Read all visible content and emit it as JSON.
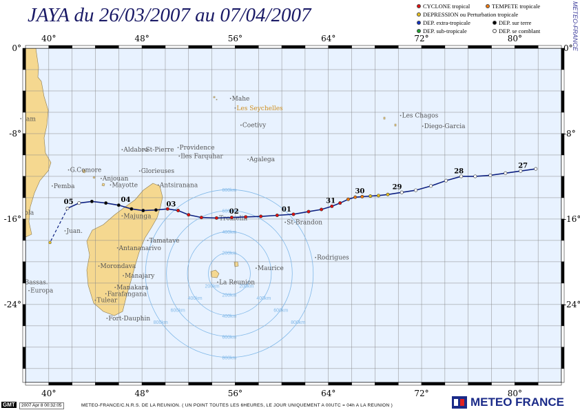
{
  "title": "JAYA du 26/03/2007 au 07/04/2007",
  "side_credit": "METEO-FRANCE",
  "legend": [
    {
      "label": "CYCLONE tropical",
      "color": "#e01010"
    },
    {
      "label": "TEMPETE tropicale",
      "color": "#f07a10"
    },
    {
      "label": "DEPRESSION ou Perturbation tropicale",
      "color": "#e8c020"
    },
    {
      "label": "DEP. extra-tropicale",
      "color": "#1030c0"
    },
    {
      "label": "DEP. sur terre",
      "color": "#000000"
    },
    {
      "label": "DEP. sub-tropicale",
      "color": "#20a030"
    },
    {
      "label": "DEP. se comblant",
      "color": "#ffffff"
    }
  ],
  "map": {
    "lon_ticks": [
      "40°",
      "48°",
      "56°",
      "64°",
      "72°",
      "80°"
    ],
    "lat_ticks": [
      "0°",
      "-8°",
      "-16°",
      "-24°"
    ],
    "colors": {
      "ocean": "#e8f2ff",
      "land": "#f5d890",
      "grid": "#888888",
      "track": "#0d2080",
      "rings": "#80b8e8"
    },
    "places": [
      {
        "name": "Mahe",
        "lon": 55.6,
        "lat": -4.7
      },
      {
        "name": "Les Seychelles",
        "lon": 56.0,
        "lat": -5.6,
        "color": "#d09020"
      },
      {
        "name": "Coetivy",
        "lon": 56.5,
        "lat": -7.2
      },
      {
        "name": "Aldabra",
        "lon": 46.3,
        "lat": -9.5
      },
      {
        "name": "St-Pierre",
        "lon": 48.2,
        "lat": -9.5
      },
      {
        "name": "Providence",
        "lon": 51.1,
        "lat": -9.3
      },
      {
        "name": "Iles Farquhar",
        "lon": 51.2,
        "lat": -10.1
      },
      {
        "name": "Agalega",
        "lon": 57.1,
        "lat": -10.4
      },
      {
        "name": "G.Comore",
        "lon": 41.7,
        "lat": -11.4
      },
      {
        "name": "Glorieuses",
        "lon": 47.8,
        "lat": -11.5
      },
      {
        "name": "Anjouan",
        "lon": 44.5,
        "lat": -12.2
      },
      {
        "name": "Mayotte",
        "lon": 45.3,
        "lat": -12.8
      },
      {
        "name": "Antsiranana",
        "lon": 49.4,
        "lat": -12.8
      },
      {
        "name": "Pemba",
        "lon": 40.3,
        "lat": -12.9
      },
      {
        "name": "Majunga",
        "lon": 46.3,
        "lat": -15.7
      },
      {
        "name": "Tromelin",
        "lon": 54.5,
        "lat": -15.9
      },
      {
        "name": "St-Brandon",
        "lon": 60.3,
        "lat": -16.3
      },
      {
        "name": "Juan.",
        "lon": 41.4,
        "lat": -17.1
      },
      {
        "name": "Tamatave",
        "lon": 48.5,
        "lat": -18.0
      },
      {
        "name": "Antananarivo",
        "lon": 45.9,
        "lat": -18.7
      },
      {
        "name": "Rodrigues",
        "lon": 62.9,
        "lat": -19.6
      },
      {
        "name": "Morondava",
        "lon": 44.3,
        "lat": -20.4
      },
      {
        "name": "Maurice",
        "lon": 57.8,
        "lat": -20.6
      },
      {
        "name": "Manajary",
        "lon": 46.4,
        "lat": -21.3
      },
      {
        "name": "La Reunion",
        "lon": 54.5,
        "lat": -21.9
      },
      {
        "name": "Bassas.",
        "lon": 37.8,
        "lat": -21.9
      },
      {
        "name": "Manakara",
        "lon": 45.7,
        "lat": -22.4
      },
      {
        "name": "Europa",
        "lon": 38.3,
        "lat": -22.7
      },
      {
        "name": "Farafangana",
        "lon": 44.9,
        "lat": -23.0
      },
      {
        "name": "Tulear",
        "lon": 44.0,
        "lat": -23.6
      },
      {
        "name": "Fort-Dauphin",
        "lon": 45.0,
        "lat": -25.3
      },
      {
        "name": "Les Chagos",
        "lon": 70.2,
        "lat": -6.3
      },
      {
        "name": "Diego-Garcia",
        "lon": 72.1,
        "lat": -7.3
      },
      {
        "name": "ilam",
        "lon": 37.6,
        "lat": -6.6
      },
      {
        "name": "ola",
        "lon": 37.8,
        "lat": -15.4
      }
    ],
    "track": [
      [
        81.8,
        -11.3
      ],
      [
        80.5,
        -11.5
      ],
      [
        79.2,
        -11.7
      ],
      [
        77.9,
        -11.9
      ],
      [
        76.6,
        -12.0
      ],
      [
        75.4,
        -12.0
      ],
      [
        74.1,
        -12.4
      ],
      [
        72.8,
        -12.9
      ],
      [
        71.5,
        -13.3
      ],
      [
        70.3,
        -13.5
      ],
      [
        69.1,
        -13.7
      ],
      [
        68.3,
        -13.8
      ],
      [
        67.6,
        -13.85
      ],
      [
        66.9,
        -13.9
      ],
      [
        66.3,
        -13.95
      ],
      [
        65.7,
        -14.15
      ],
      [
        65.0,
        -14.5
      ],
      [
        64.3,
        -14.8
      ],
      [
        63.4,
        -15.1
      ],
      [
        62.3,
        -15.3
      ],
      [
        61.0,
        -15.55
      ],
      [
        59.6,
        -15.65
      ],
      [
        58.2,
        -15.75
      ],
      [
        56.9,
        -15.8
      ],
      [
        55.7,
        -15.85
      ],
      [
        54.4,
        -15.9
      ],
      [
        53.1,
        -15.85
      ],
      [
        52.0,
        -15.6
      ],
      [
        51.1,
        -15.2
      ],
      [
        50.2,
        -15.05
      ],
      [
        49.2,
        -15.15
      ],
      [
        48.1,
        -15.2
      ],
      [
        47.1,
        -15.05
      ],
      [
        46.0,
        -14.7
      ],
      [
        44.9,
        -14.5
      ],
      [
        43.7,
        -14.35
      ],
      [
        42.6,
        -14.5
      ],
      [
        41.6,
        -15.0
      ]
    ],
    "track_extension": [
      [
        41.6,
        -15.0
      ],
      [
        40.1,
        -18.2
      ]
    ],
    "track_point_colors": [
      "#ffffff",
      "#ffffff",
      "#ffffff",
      "#ffffff",
      "#ffffff",
      "#ffffff",
      "#ffffff",
      "#ffffff",
      "#ffffff",
      "#ffffff",
      "#e8c020",
      "#e8c020",
      "#e8c020",
      "#f07a10",
      "#f07a10",
      "#f07a10",
      "#e01010",
      "#e01010",
      "#e01010",
      "#e01010",
      "#e01010",
      "#e01010",
      "#e01010",
      "#e01010",
      "#e01010",
      "#e01010",
      "#e01010",
      "#e01010",
      "#e01010",
      "#e01010",
      "#000000",
      "#000000",
      "#000000",
      "#000000",
      "#000000",
      "#000000",
      "#ffffff",
      "#ffffff"
    ],
    "day_labels": [
      {
        "label": "27",
        "lon": 80.7,
        "lat": -11.2
      },
      {
        "label": "28",
        "lon": 75.2,
        "lat": -11.7
      },
      {
        "label": "29",
        "lon": 69.9,
        "lat": -13.2
      },
      {
        "label": "30",
        "lon": 66.7,
        "lat": -13.6
      },
      {
        "label": "31",
        "lon": 64.2,
        "lat": -14.5
      },
      {
        "label": "01",
        "lon": 60.4,
        "lat": -15.3
      },
      {
        "label": "02",
        "lon": 55.9,
        "lat": -15.5
      },
      {
        "label": "03",
        "lon": 50.5,
        "lat": -14.8
      },
      {
        "label": "04",
        "lon": 46.6,
        "lat": -14.4
      },
      {
        "label": "05",
        "lon": 41.7,
        "lat": -14.6
      }
    ],
    "ring_center": {
      "lon": 55.5,
      "lat": -21.1
    },
    "rings": [
      {
        "label": "200km",
        "deg": 1.8
      },
      {
        "label": "400km",
        "deg": 3.6
      },
      {
        "label": "600km",
        "deg": 5.4
      },
      {
        "label": "800km",
        "deg": 7.2
      }
    ]
  },
  "footer": {
    "gmt": "GMT",
    "stamp": "2007 Apr 8 00:32:05",
    "credit": "METEO-FRANCE/C.N.R.S. DE LA REUNION. ( UN POINT TOUTES LES 6HEURES, LE JOUR UNIQUEMENT A 00UTC = 04h A LA REUNION )",
    "logo": "METEO FRANCE"
  }
}
